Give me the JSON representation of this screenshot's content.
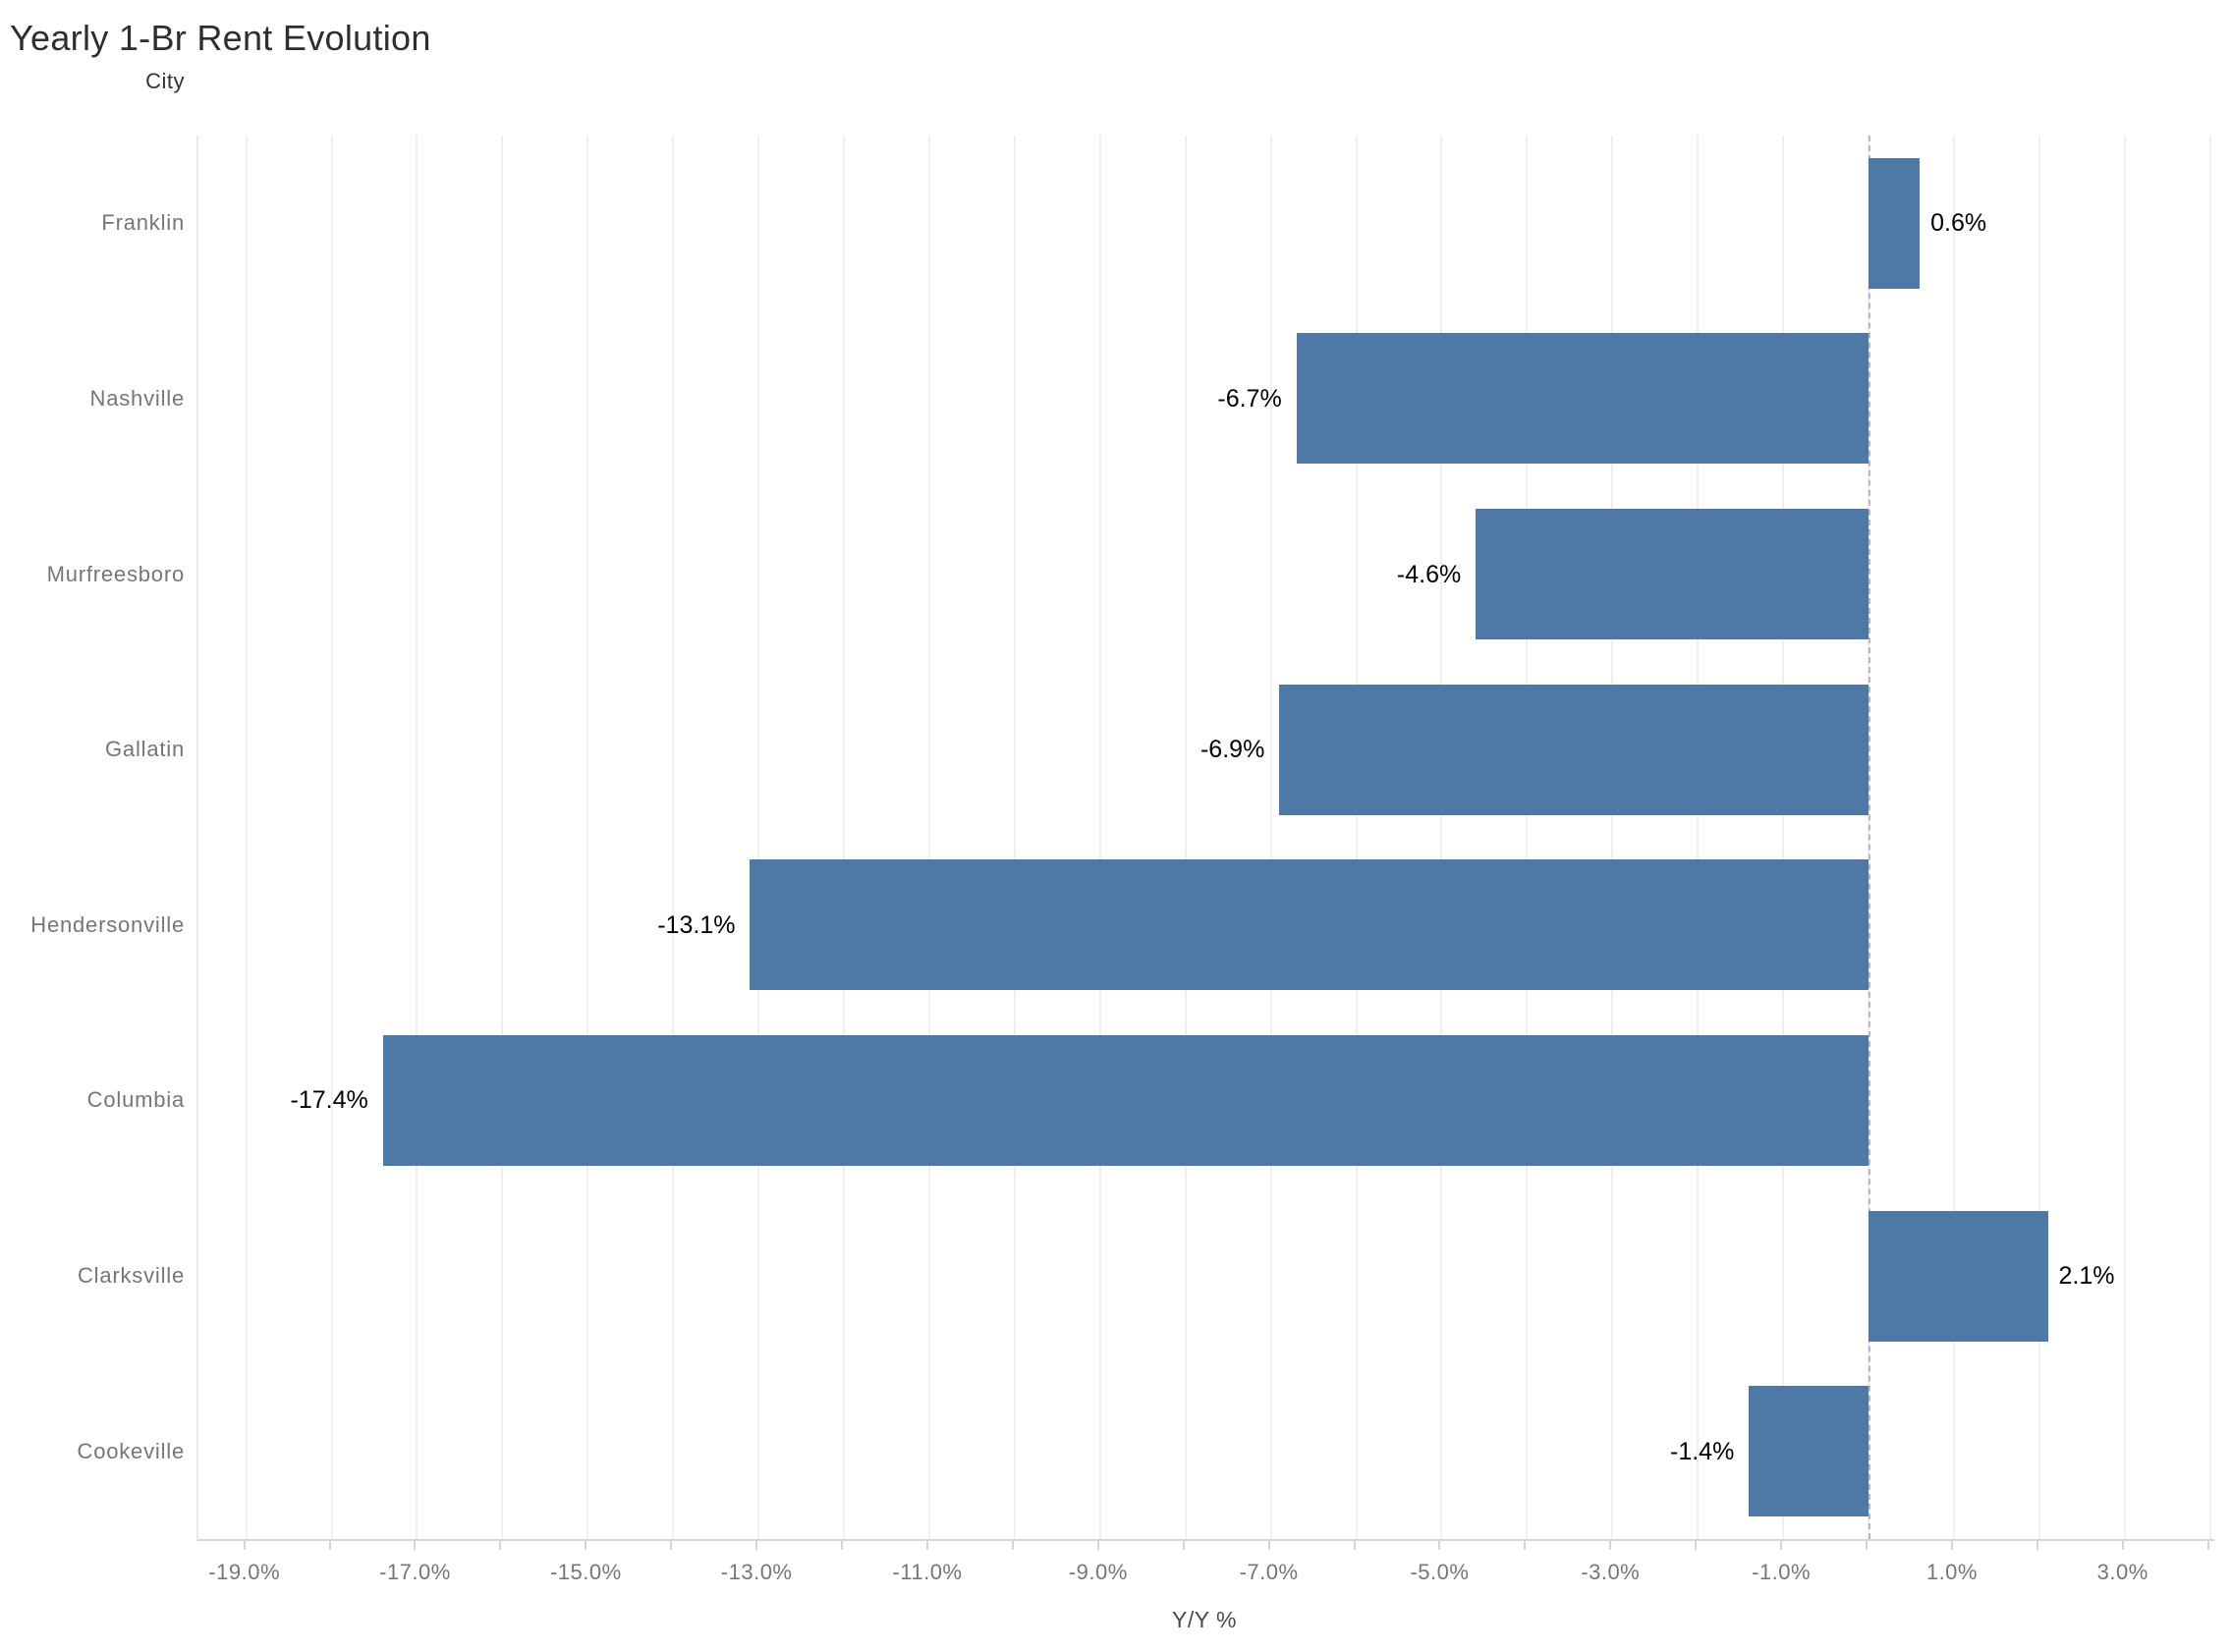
{
  "chart_data": {
    "type": "bar",
    "orientation": "horizontal",
    "title": "Yearly 1-Br Rent Evolution",
    "xlabel": "Y/Y %",
    "ylabel": "City",
    "categories": [
      "Franklin",
      "Nashville",
      "Murfreesboro",
      "Gallatin",
      "Hendersonville",
      "Columbia",
      "Clarksville",
      "Cookeville"
    ],
    "values": [
      0.6,
      -6.7,
      -4.6,
      -6.9,
      -13.1,
      -17.4,
      2.1,
      -1.4
    ],
    "labels": [
      "0.6%",
      "-6.7%",
      "-4.6%",
      "-6.9%",
      "-13.1%",
      "-17.4%",
      "2.1%",
      "-1.4%"
    ],
    "xlim": [
      -19.56,
      4.05
    ],
    "x_tick_values": [
      -19,
      -17,
      -15,
      -13,
      -11,
      -9,
      -7,
      -5,
      -3,
      -1,
      1,
      3
    ],
    "x_tick_labels": [
      "-19.0%",
      "-17.0%",
      "-15.0%",
      "-13.0%",
      "-11.0%",
      "-9.0%",
      "-7.0%",
      "-5.0%",
      "-3.0%",
      "-1.0%",
      "1.0%",
      "3.0%"
    ],
    "gridline_every": 1,
    "grid": true,
    "legend": "none",
    "bar_color": "#4e79a7",
    "zero_line_style": "dashed"
  }
}
